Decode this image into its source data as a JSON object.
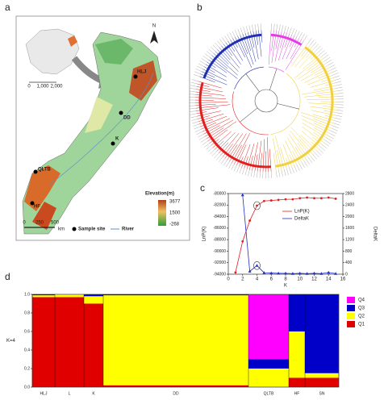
{
  "map": {
    "label": "a",
    "north": "N",
    "inset_scale": [
      "0",
      "1,000",
      "2,000"
    ],
    "sites": [
      "HLJ",
      "DD",
      "K",
      "QLTB",
      "HF"
    ],
    "elevation_title": "Elevation(m)",
    "elevation_labels": [
      "3677",
      "1500",
      "-268"
    ],
    "scale": [
      "0",
      "250",
      "500"
    ],
    "scale_unit": "km",
    "legend": [
      "Sample site",
      "River"
    ]
  },
  "tree": {
    "label": "b"
  },
  "chart_data": [
    {
      "type": "line",
      "label": "c",
      "xlabel": "K",
      "ylabel": "LnP(K)",
      "y2label": "DeltaK",
      "x": [
        1,
        2,
        3,
        4,
        5,
        6,
        7,
        8,
        9,
        10,
        11,
        12,
        13,
        14,
        15
      ],
      "series": [
        {
          "name": "LnP(K)",
          "color": "#e02020",
          "values": [
            -93700,
            -88300,
            -84700,
            -82100,
            -81300,
            -81200,
            -81100,
            -81000,
            -81000,
            -80800,
            -80700,
            -80800,
            -80800,
            -80700,
            -80900
          ]
        },
        {
          "name": "DeltaK",
          "color": "#2030c0",
          "axis": "y2",
          "values": [
            null,
            2750,
            100,
            300,
            50,
            40,
            30,
            30,
            20,
            30,
            20,
            30,
            20,
            60,
            20
          ]
        }
      ],
      "xlim": [
        0,
        16
      ],
      "xticks": [
        0,
        2,
        4,
        6,
        8,
        10,
        12,
        14,
        16
      ],
      "ylim": [
        -94000,
        -80000
      ],
      "yticks": [
        -94000,
        -92000,
        -90000,
        -88000,
        -86000,
        -84000,
        -82000,
        -80000
      ],
      "y2lim": [
        0,
        2800
      ],
      "y2ticks": [
        0,
        400,
        800,
        1200,
        1600,
        2000,
        2400,
        2800
      ]
    },
    {
      "type": "stacked-bar",
      "label": "d",
      "annotation": "K=4",
      "categories": [
        "HLJ",
        "L",
        "K",
        "DD",
        "QLTB",
        "HF",
        "SN"
      ],
      "series": [
        {
          "name": "Q1",
          "color": "#e00000",
          "values": [
            0.97,
            0.97,
            0.9,
            0.02,
            0,
            0.1,
            0.1
          ]
        },
        {
          "name": "Q2",
          "color": "#ffff00",
          "values": [
            0.02,
            0.03,
            0.08,
            0.97,
            0.2,
            0.5,
            0.05
          ]
        },
        {
          "name": "Q3",
          "color": "#0000c8",
          "values": [
            0.01,
            0,
            0.02,
            0.01,
            0.1,
            0.4,
            0.85
          ]
        },
        {
          "name": "Q4",
          "color": "#ff00ff",
          "values": [
            0,
            0,
            0,
            0,
            0.7,
            0,
            0
          ]
        }
      ],
      "ylim": [
        0,
        1
      ],
      "yticks": [
        {
          "value": 0,
          "label": "0.0"
        },
        {
          "value": 0.2,
          "label": "0.2"
        },
        {
          "value": 0.4,
          "label": "0.4"
        },
        {
          "value": 0.6,
          "label": "0.6"
        },
        {
          "value": 0.8,
          "label": "0.8"
        },
        {
          "value": 1,
          "label": "1.0"
        }
      ]
    }
  ]
}
